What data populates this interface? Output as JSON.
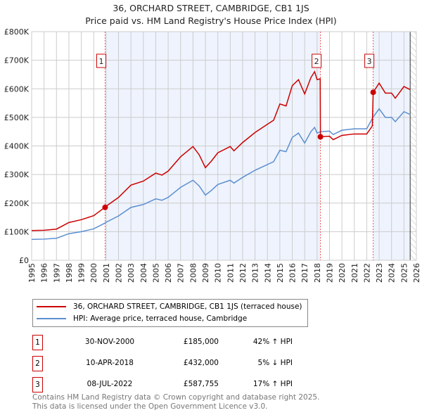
{
  "chart_data": {
    "type": "line",
    "title": "36, ORCHARD STREET, CAMBRIDGE, CB1 1JS",
    "subtitle": "Price paid vs. HM Land Registry's House Price Index (HPI)",
    "xlim": [
      1995,
      2026
    ],
    "ylim": [
      0,
      800000
    ],
    "yticks": [
      {
        "v": 0,
        "label": "£0"
      },
      {
        "v": 100000,
        "label": "£100K"
      },
      {
        "v": 200000,
        "label": "£200K"
      },
      {
        "v": 300000,
        "label": "£300K"
      },
      {
        "v": 400000,
        "label": "£400K"
      },
      {
        "v": 500000,
        "label": "£500K"
      },
      {
        "v": 600000,
        "label": "£600K"
      },
      {
        "v": 700000,
        "label": "£700K"
      },
      {
        "v": 800000,
        "label": "£800K"
      }
    ],
    "xticks": [
      "1995",
      "1996",
      "1997",
      "1998",
      "1999",
      "2000",
      "2001",
      "2002",
      "2003",
      "2004",
      "2005",
      "2006",
      "2007",
      "2008",
      "2009",
      "2010",
      "2011",
      "2012",
      "2013",
      "2014",
      "2015",
      "2016",
      "2017",
      "2018",
      "2019",
      "2020",
      "2021",
      "2022",
      "2023",
      "2024",
      "2025",
      "2026"
    ],
    "series": [
      {
        "name": "36, ORCHARD STREET, CAMBRIDGE, CB1 1JS (terraced house)",
        "color": "#cc0000",
        "x": [
          1995,
          1996,
          1997,
          1998,
          1999,
          2000,
          2000.9,
          2001,
          2002,
          2003,
          2004,
          2005,
          2005.5,
          2006,
          2007,
          2008,
          2008.5,
          2009,
          2009.5,
          2010,
          2011,
          2011.3,
          2012,
          2013,
          2014,
          2014.5,
          2015,
          2015.5,
          2016,
          2016.5,
          2017,
          2017.5,
          2017.8,
          2018,
          2018.25,
          2018.27,
          2019,
          2019.3,
          2020,
          2021,
          2022,
          2022.45,
          2022.52,
          2023,
          2023.5,
          2024,
          2024.3,
          2025,
          2025.5
        ],
        "y": [
          104000,
          105000,
          109000,
          132000,
          142000,
          156000,
          185000,
          189000,
          220000,
          263000,
          277000,
          305000,
          298000,
          312000,
          362000,
          398000,
          369000,
          324000,
          348000,
          376000,
          398000,
          383000,
          412000,
          447000,
          476000,
          490000,
          547000,
          540000,
          611000,
          632000,
          582000,
          639000,
          660000,
          632000,
          635000,
          432000,
          434000,
          422000,
          437000,
          442000,
          442000,
          470000,
          587755,
          620000,
          585000,
          585000,
          567000,
          608000,
          597000
        ]
      },
      {
        "name": "HPI: Average price, terraced house, Cambridge",
        "color": "#5b8fd0",
        "x": [
          1995,
          1996,
          1997,
          1998,
          1999,
          2000,
          2000.9,
          2001,
          2002,
          2003,
          2004,
          2005,
          2005.5,
          2006,
          2007,
          2008,
          2008.5,
          2009,
          2009.5,
          2010,
          2011,
          2011.3,
          2012,
          2013,
          2014,
          2014.5,
          2015,
          2015.5,
          2016,
          2016.5,
          2017,
          2017.5,
          2017.8,
          2018,
          2018.3,
          2019,
          2019.3,
          2020,
          2021,
          2022,
          2022.5,
          2023,
          2023.5,
          2024,
          2024.3,
          2025,
          2025.5
        ],
        "y": [
          73000,
          74000,
          77000,
          93000,
          100000,
          110000,
          130000,
          133000,
          155000,
          185000,
          195000,
          215000,
          210000,
          220000,
          255000,
          280000,
          260000,
          228000,
          245000,
          265000,
          280000,
          270000,
          290000,
          315000,
          335000,
          345000,
          385000,
          380000,
          430000,
          445000,
          410000,
          450000,
          465000,
          445000,
          450000,
          452000,
          440000,
          455000,
          460000,
          460000,
          500000,
          530000,
          500000,
          500000,
          485000,
          520000,
          510000
        ]
      }
    ],
    "sales": [
      {
        "n": "1",
        "x": 2000.92,
        "y": 185000,
        "date": "30-NOV-2000",
        "price": "£185,000",
        "hpi": "42% ↑ HPI"
      },
      {
        "n": "2",
        "x": 2018.27,
        "y": 432000,
        "date": "10-APR-2018",
        "price": "£432,000",
        "hpi": "5% ↓ HPI"
      },
      {
        "n": "3",
        "x": 2022.52,
        "y": 587755,
        "date": "08-JUL-2022",
        "price": "£587,755",
        "hpi": "17% ↑ HPI"
      }
    ],
    "forecast_from": 2025.5
  },
  "footer": {
    "line1": "Contains HM Land Registry data © Crown copyright and database right 2025.",
    "line2": "This data is licensed under the Open Government Licence v3.0."
  }
}
